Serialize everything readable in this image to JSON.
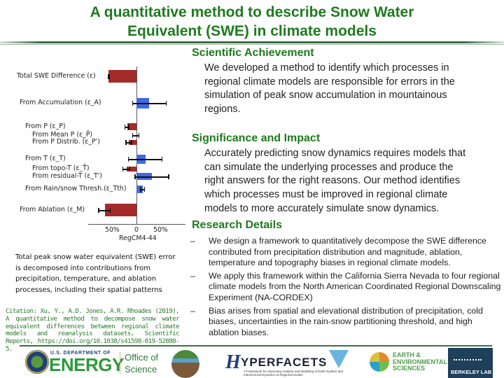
{
  "title": {
    "line1": "A quantitative method to describe Snow Water",
    "line2": "Equivalent (SWE) in climate models"
  },
  "sections": {
    "achievement": {
      "heading": "Scientific Achievement",
      "lines": [
        "We developed a method to identify which processes in",
        "regional climate models are responsible for errors in the",
        "simulation of peak snow accumulation in mountainous",
        "regions."
      ]
    },
    "significance": {
      "heading": "Significance and Impact",
      "lines": [
        "Accurately predicting snow dynamics requires models that",
        "can simulate the underlying processes and produce the",
        "right answers for the right reasons.  Our method identifies",
        "which processes must be improved in regional climate",
        "models to more accurately simulate snow dynamics."
      ]
    },
    "research": {
      "heading": "Research Details",
      "bullet_marker": "–",
      "bullets": [
        "We design a framework to quantitatively decompose the SWE difference contributed from precipitation distribution and magnitude, ablation, temperature and topography biases in regional climate models.",
        "We apply this framework within the California Sierra Nevada to four regional climate models from the North American Coordinated Regional Downscaling Experiment (NA-CORDEX)",
        "Bias arises from spatial and elevational distribution of precipitation, cold biases, uncertainties in the rain-snow partitioning threshold, and high ablation biases."
      ]
    }
  },
  "figure": {
    "caption": "Total peak snow water equivalent (SWE) error is decomposed into contributions from precipitation, temperature, and ablation processes, including their spatial patterns",
    "citation": "Citation: Xu, Y., A.D. Jones, A.R. Rhoades (2019), A quantitative method to decompose snow water equivalent differences between regional climate models and reanalysis datasets, Scientific Reports, https://doi.org/10.1038/s41598-019-52880-5."
  },
  "chart_data": {
    "type": "bar",
    "orientation": "horizontal",
    "title": "",
    "xlabel": "RegCM4-44",
    "ylabel": "",
    "xlim": [
      -95,
      95
    ],
    "x_ticks": [
      "50%",
      "0",
      "50%"
    ],
    "grid": false,
    "colors": {
      "negative": "#a52a2a",
      "positive": "#4169e1"
    },
    "categories": [
      "Total SWE Difference (ε)",
      "From Accumulation (ε_A)",
      "From P (ε_P)",
      "From Mean P (ε_P̄)",
      "From P Distrib. (ε_P')",
      "From T (ε_T)",
      "From topo-T (ε_T̄)",
      "From residual-T (ε_T')",
      "From Rain/snow Thresh.(ε_Tth)",
      "From Ablation (ε_M)"
    ],
    "values": [
      -55,
      25,
      -18,
      0,
      -15,
      18,
      -20,
      30,
      12,
      -63
    ],
    "error_low": [
      -57,
      -9,
      -24,
      -9,
      -22,
      -17,
      -28,
      -4,
      7,
      -76
    ],
    "error_high": [
      -53,
      60,
      -14,
      6,
      -9,
      52,
      -12,
      65,
      17,
      -51
    ]
  },
  "logos": {
    "doe_small": "U.S. DEPARTMENT OF",
    "doe_big": "ENERGY",
    "office_line1": "Office of",
    "office_line2": "Science",
    "hyperfacets_h": "H",
    "hyperfacets_text": "YPERFACETS",
    "hyperfacets_sub": "A Framework for Improving Analysis and Modeling of Earth System and Intersectoral Dynamics at Regional Scales",
    "ees_line1": "EARTH &",
    "ees_line2": "ENVIRONMENTAL",
    "ees_line3": "SCIENCES",
    "berkeley": "BERKELEY LAB"
  }
}
